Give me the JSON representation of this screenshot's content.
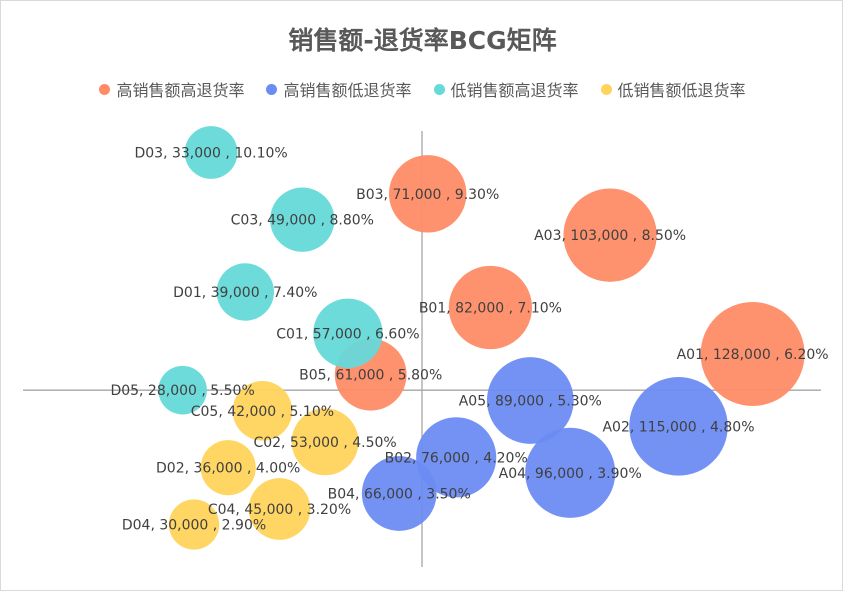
{
  "chart_data": {
    "type": "bubble",
    "title": "销售额-退货率BCG矩阵",
    "xlabel": "",
    "ylabel": "",
    "xlim": [
      0,
      140000
    ],
    "ylim": [
      2,
      11
    ],
    "x_divider": 70000,
    "y_divider": 5.5,
    "grid": false,
    "legend_position": "top",
    "series": [
      {
        "name": "高销售额高退货率",
        "color": "#ff8c66",
        "points": [
          {
            "id": "B03",
            "x": 71000,
            "y": 9.3,
            "label": "B03, 71,000 , 9.30%"
          },
          {
            "id": "A03",
            "x": 103000,
            "y": 8.5,
            "label": "A03, 103,000 , 8.50%"
          },
          {
            "id": "B01",
            "x": 82000,
            "y": 7.1,
            "label": "B01, 82,000 , 7.10%"
          },
          {
            "id": "A01",
            "x": 128000,
            "y": 6.2,
            "label": "A01, 128,000 , 6.20%"
          },
          {
            "id": "B05",
            "x": 61000,
            "y": 5.8,
            "label": "B05, 61,000 , 5.80%"
          }
        ]
      },
      {
        "name": "高销售额低退货率",
        "color": "#6b8cf2",
        "points": [
          {
            "id": "A05",
            "x": 89000,
            "y": 5.3,
            "label": "A05, 89,000 , 5.30%"
          },
          {
            "id": "A02",
            "x": 115000,
            "y": 4.8,
            "label": "A02, 115,000 , 4.80%"
          },
          {
            "id": "B02",
            "x": 76000,
            "y": 4.2,
            "label": "B02, 76,000 , 4.20%"
          },
          {
            "id": "A04",
            "x": 96000,
            "y": 3.9,
            "label": "A04, 96,000 , 3.90%"
          },
          {
            "id": "B04",
            "x": 66000,
            "y": 3.5,
            "label": "B04, 66,000 , 3.50%"
          }
        ]
      },
      {
        "name": "低销售额高退货率",
        "color": "#66d9d9",
        "points": [
          {
            "id": "D03",
            "x": 33000,
            "y": 10.1,
            "label": "D03, 33,000 , 10.10%"
          },
          {
            "id": "C03",
            "x": 49000,
            "y": 8.8,
            "label": "C03, 49,000 , 8.80%"
          },
          {
            "id": "D01",
            "x": 39000,
            "y": 7.4,
            "label": "D01, 39,000 , 7.40%"
          },
          {
            "id": "C01",
            "x": 57000,
            "y": 6.6,
            "label": "C01, 57,000 , 6.60%"
          },
          {
            "id": "D05",
            "x": 28000,
            "y": 5.5,
            "label": "D05, 28,000 , 5.50%"
          }
        ]
      },
      {
        "name": "低销售额低退货率",
        "color": "#ffd45c",
        "points": [
          {
            "id": "C05",
            "x": 42000,
            "y": 5.1,
            "label": "C05, 42,000 , 5.10%"
          },
          {
            "id": "C02",
            "x": 53000,
            "y": 4.5,
            "label": "C02, 53,000 , 4.50%"
          },
          {
            "id": "D02",
            "x": 36000,
            "y": 4.0,
            "label": "D02, 36,000 , 4.00%"
          },
          {
            "id": "C04",
            "x": 45000,
            "y": 3.2,
            "label": "C04, 45,000 , 3.20%"
          },
          {
            "id": "D04",
            "x": 30000,
            "y": 2.9,
            "label": "D04, 30,000 , 2.90%"
          }
        ]
      }
    ]
  }
}
